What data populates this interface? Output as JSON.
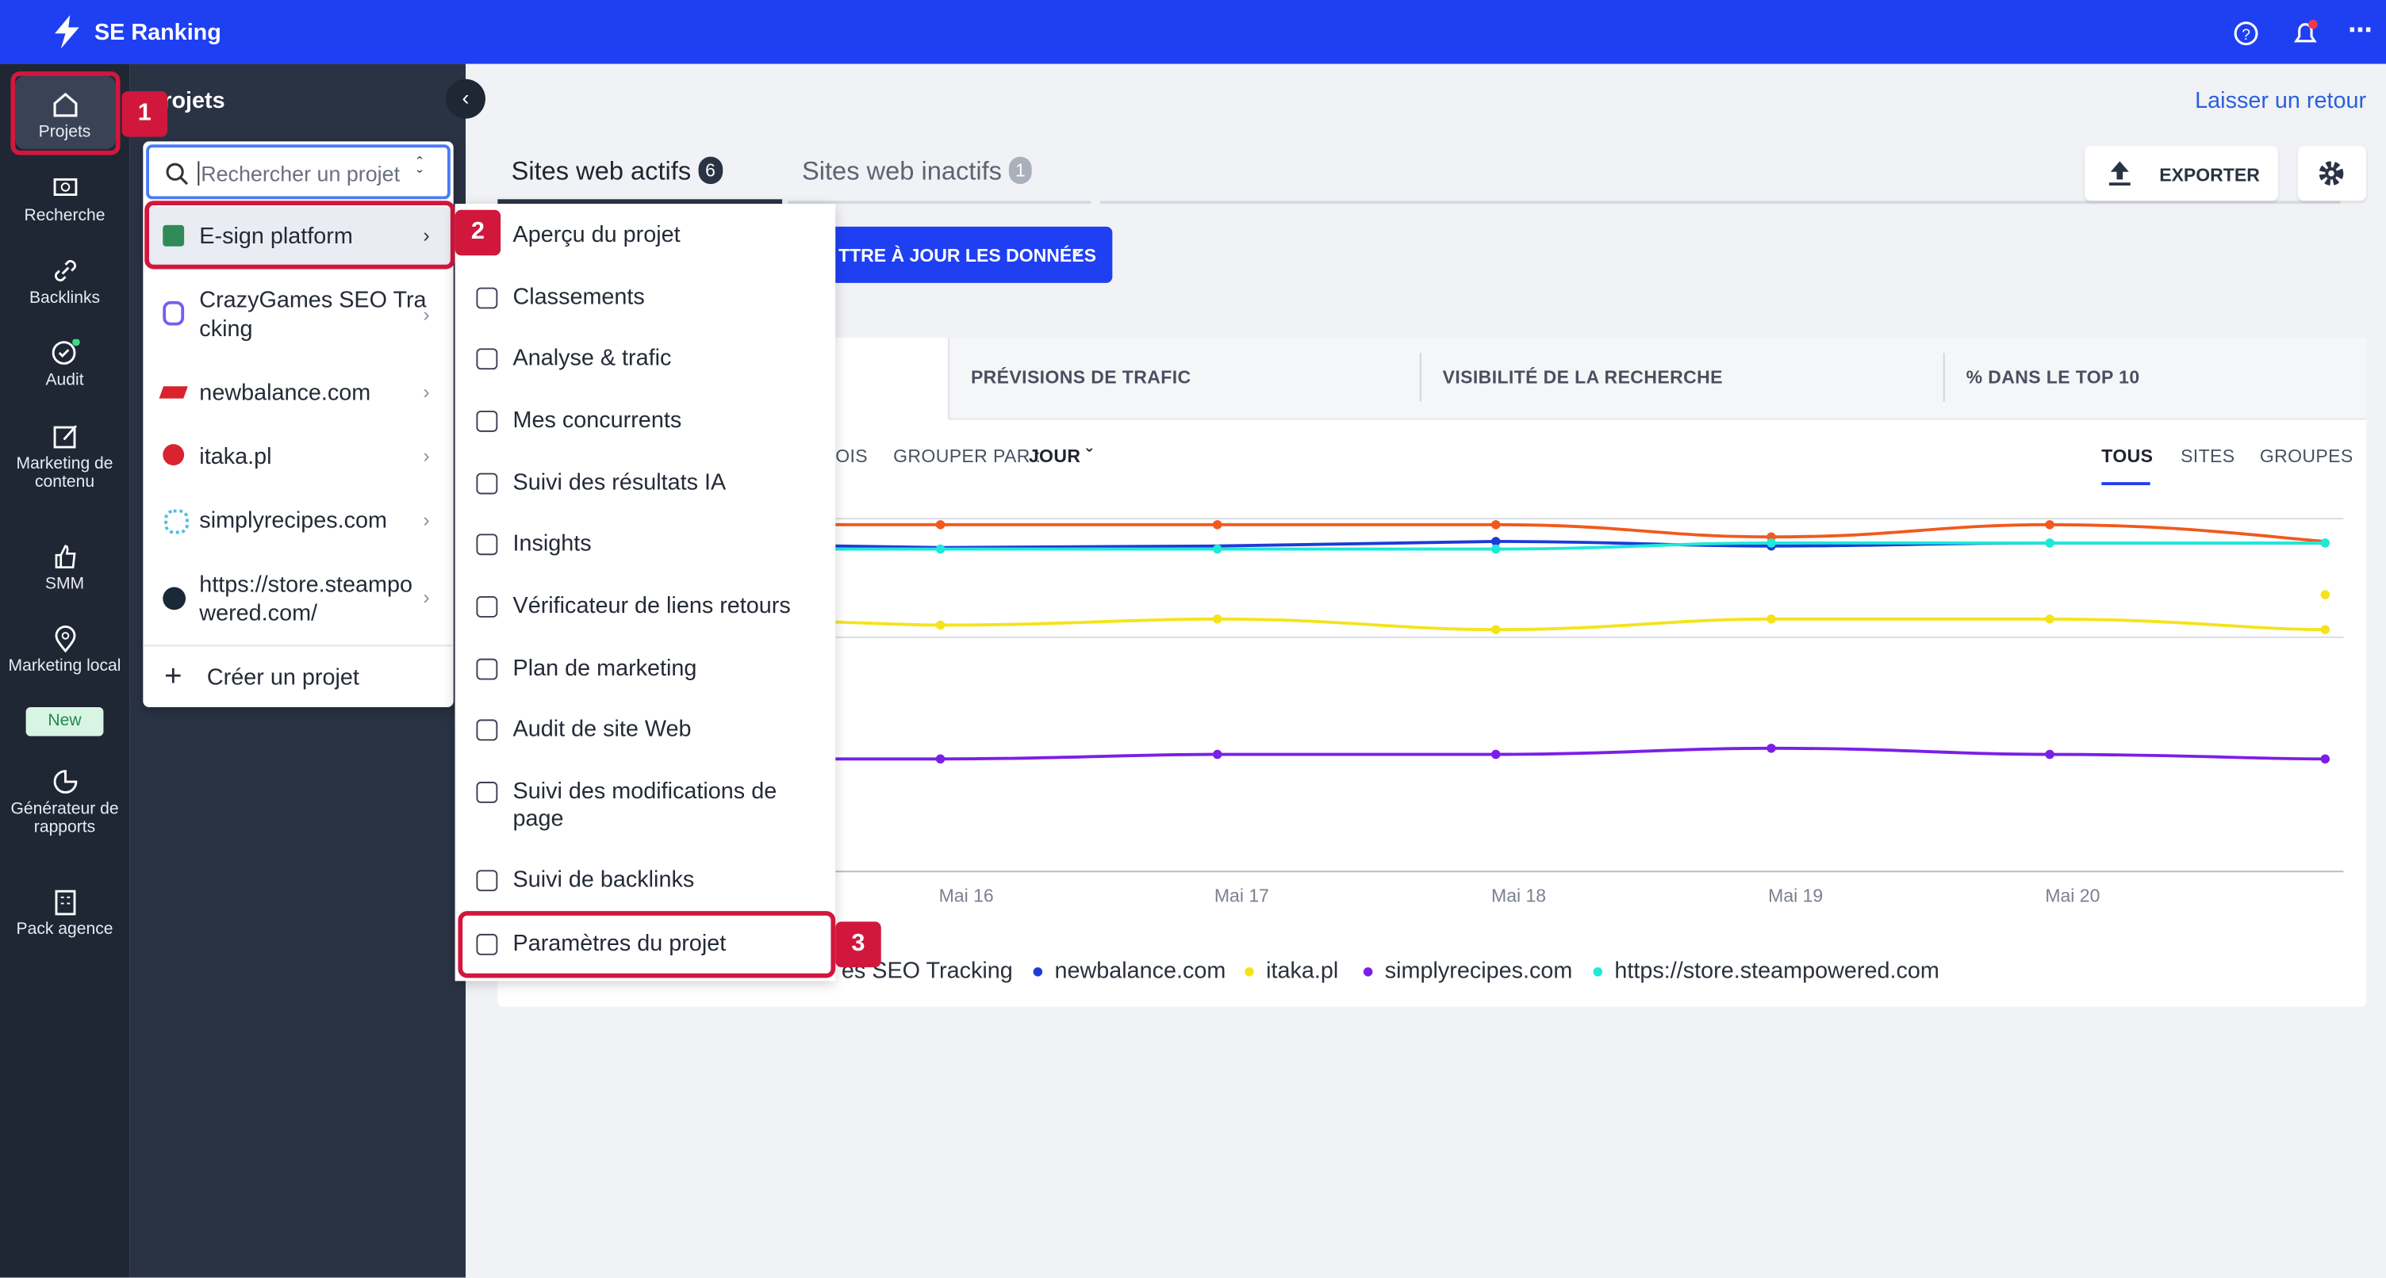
{
  "header": {
    "brand": "SE Ranking"
  },
  "sidebar": {
    "items": [
      {
        "label": "Projets"
      },
      {
        "label": "Recherche"
      },
      {
        "label": "Backlinks"
      },
      {
        "label": "Audit"
      },
      {
        "label": "Marketing de contenu"
      },
      {
        "label": "SMM"
      },
      {
        "label": "Marketing local"
      },
      {
        "label": "Générateur de rapports"
      },
      {
        "label": "Pack agence"
      }
    ],
    "new_badge": "New"
  },
  "projects_panel": {
    "title": "Projets",
    "search_placeholder": "Rechercher un projet",
    "projects": [
      "E-sign platform",
      "CrazyGames SEO Tracking",
      "newbalance.com",
      "itaka.pl",
      "simplyrecipes.com",
      "https://store.steampowered.com/"
    ],
    "create": "Créer un projet"
  },
  "submenu": {
    "items": [
      "Aperçu du projet",
      "Classements",
      "Analyse & trafic",
      "Mes concurrents",
      "Suivi des résultats IA",
      "Insights",
      "Vérificateur de liens retours",
      "Plan de marketing",
      "Audit de site Web",
      "Suivi des modifications de page",
      "Suivi de backlinks",
      "Paramètres du projet"
    ]
  },
  "steps": [
    "1",
    "2",
    "3"
  ],
  "main": {
    "feedback": "Laisser un retour",
    "tabs": [
      {
        "label": "Sites web actifs",
        "count": "6"
      },
      {
        "label": "Sites web inactifs",
        "count": "1"
      }
    ],
    "export": "EXPORTER",
    "update_button": "TTRE À JOUR LES DONNÉES",
    "chart_tabs": [
      "PRÉVISIONS DE TRAFIC",
      "VISIBILITÉ DE LA RECHERCHE",
      "% DANS LE TOP 10"
    ],
    "period_fragment": "OIS",
    "group_by": "GROUPER PAR :",
    "group_value": "JOUR",
    "filters": [
      "TOUS",
      "SITES",
      "GROUPES"
    ],
    "x_labels": [
      "Mai 16",
      "Mai 17",
      "Mai 18",
      "Mai 19",
      "Mai 20"
    ],
    "legend": [
      {
        "name": "es SEO Tracking",
        "color": "#5a2fd6"
      },
      {
        "name": "newbalance.com",
        "color": "#1d3bd8"
      },
      {
        "name": "itaka.pl",
        "color": "#f5e31a"
      },
      {
        "name": "simplyrecipes.com",
        "color": "#7c1fe6"
      },
      {
        "name": "https://store.steampowered.com",
        "color": "#1ee8d8"
      }
    ]
  }
}
